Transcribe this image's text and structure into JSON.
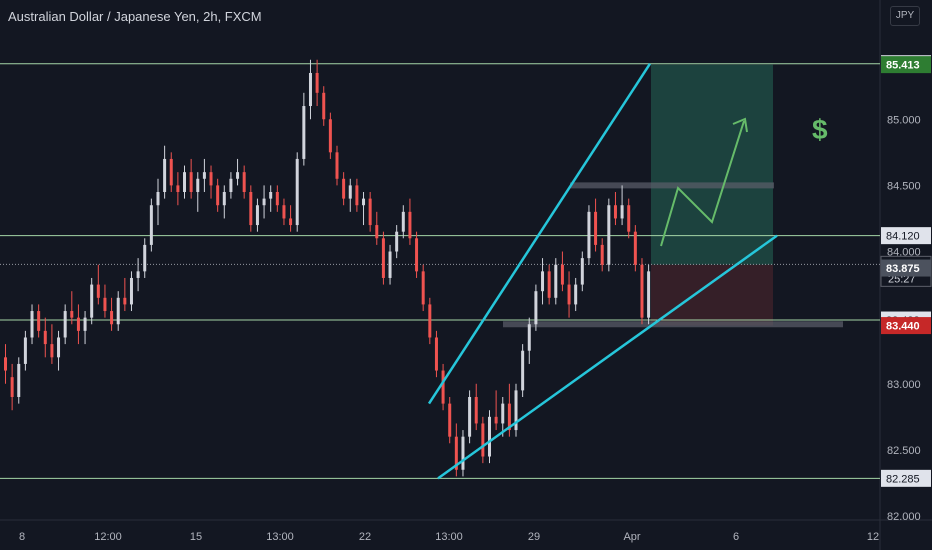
{
  "header": {
    "title": "Australian Dollar / Japanese Yen, 2h, FXCM",
    "currency_label": "JPY"
  },
  "countdown": "25:27",
  "colors": {
    "background": "#131722",
    "up_candle": "#d1d4dc",
    "down_candle": "#ef5350",
    "trendline": "#26c6da",
    "hline": "#a5d6a7",
    "target_zone": "#1f4a43",
    "stop_zone": "#3c2129",
    "arrow": "#66bb6a",
    "badge": "#e0e3eb",
    "current": "#4c525e"
  },
  "chart_data": {
    "type": "candlestick",
    "title": "Australian Dollar / Japanese Yen, 2h, FXCM",
    "ylim": [
      81.97,
      85.69
    ],
    "y_ticks": [
      "85.000",
      "84.500",
      "84.000",
      "83.000",
      "82.500",
      "82.000"
    ],
    "x_ticks": [
      "8",
      "12:00",
      "15",
      "13:00",
      "22",
      "13:00",
      "29",
      "Apr",
      "6",
      "12"
    ],
    "price_levels": [
      {
        "label": "85.420",
        "price": 85.42,
        "style": "line"
      },
      {
        "label": "85.413",
        "price": 85.413,
        "style": "target"
      },
      {
        "label": "84.120",
        "price": 84.12,
        "style": "line"
      },
      {
        "label": "83.903",
        "price": 83.903,
        "style": "current",
        "countdown": "25:27"
      },
      {
        "label": "83.875",
        "price": 83.875,
        "style": "grey"
      },
      {
        "label": "83.482",
        "price": 83.482,
        "style": "line"
      },
      {
        "label": "83.440",
        "price": 83.44,
        "style": "stop"
      },
      {
        "label": "82.285",
        "price": 82.285,
        "style": "line"
      }
    ],
    "annotation": "$",
    "candles": [
      [
        83.2,
        83.3,
        83.0,
        83.1
      ],
      [
        83.05,
        83.15,
        82.8,
        82.9
      ],
      [
        82.9,
        83.2,
        82.85,
        83.15
      ],
      [
        83.15,
        83.4,
        83.1,
        83.35
      ],
      [
        83.35,
        83.6,
        83.3,
        83.55
      ],
      [
        83.55,
        83.6,
        83.35,
        83.4
      ],
      [
        83.4,
        83.5,
        83.2,
        83.3
      ],
      [
        83.3,
        83.45,
        83.15,
        83.2
      ],
      [
        83.2,
        83.4,
        83.1,
        83.35
      ],
      [
        83.35,
        83.6,
        83.3,
        83.55
      ],
      [
        83.55,
        83.7,
        83.45,
        83.5
      ],
      [
        83.5,
        83.6,
        83.3,
        83.4
      ],
      [
        83.4,
        83.55,
        83.3,
        83.5
      ],
      [
        83.5,
        83.8,
        83.45,
        83.75
      ],
      [
        83.75,
        83.9,
        83.6,
        83.65
      ],
      [
        83.65,
        83.75,
        83.5,
        83.55
      ],
      [
        83.55,
        83.65,
        83.4,
        83.45
      ],
      [
        83.45,
        83.7,
        83.4,
        83.65
      ],
      [
        83.65,
        83.8,
        83.55,
        83.6
      ],
      [
        83.6,
        83.85,
        83.55,
        83.8
      ],
      [
        83.8,
        83.95,
        83.7,
        83.85
      ],
      [
        83.85,
        84.1,
        83.8,
        84.05
      ],
      [
        84.05,
        84.4,
        84.0,
        84.35
      ],
      [
        84.35,
        84.55,
        84.2,
        84.45
      ],
      [
        84.45,
        84.8,
        84.4,
        84.7
      ],
      [
        84.7,
        84.75,
        84.45,
        84.5
      ],
      [
        84.5,
        84.6,
        84.35,
        84.45
      ],
      [
        84.45,
        84.65,
        84.4,
        84.6
      ],
      [
        84.6,
        84.7,
        84.4,
        84.45
      ],
      [
        84.45,
        84.6,
        84.3,
        84.55
      ],
      [
        84.55,
        84.7,
        84.45,
        84.6
      ],
      [
        84.6,
        84.65,
        84.4,
        84.5
      ],
      [
        84.5,
        84.55,
        84.3,
        84.35
      ],
      [
        84.35,
        84.5,
        84.25,
        84.45
      ],
      [
        84.45,
        84.6,
        84.4,
        84.55
      ],
      [
        84.55,
        84.7,
        84.5,
        84.6
      ],
      [
        84.6,
        84.65,
        84.4,
        84.45
      ],
      [
        84.45,
        84.5,
        84.15,
        84.2
      ],
      [
        84.2,
        84.4,
        84.15,
        84.35
      ],
      [
        84.35,
        84.5,
        84.25,
        84.4
      ],
      [
        84.4,
        84.5,
        84.3,
        84.45
      ],
      [
        84.45,
        84.5,
        84.3,
        84.35
      ],
      [
        84.35,
        84.4,
        84.2,
        84.25
      ],
      [
        84.25,
        84.35,
        84.15,
        84.2
      ],
      [
        84.2,
        84.75,
        84.15,
        84.7
      ],
      [
        84.7,
        85.2,
        84.65,
        85.1
      ],
      [
        85.1,
        85.45,
        85.0,
        85.35
      ],
      [
        85.35,
        85.45,
        85.1,
        85.2
      ],
      [
        85.2,
        85.25,
        84.95,
        85.0
      ],
      [
        85.0,
        85.05,
        84.7,
        84.75
      ],
      [
        84.75,
        84.8,
        84.5,
        84.55
      ],
      [
        84.55,
        84.6,
        84.35,
        84.4
      ],
      [
        84.4,
        84.55,
        84.3,
        84.5
      ],
      [
        84.5,
        84.55,
        84.3,
        84.35
      ],
      [
        84.35,
        84.45,
        84.2,
        84.4
      ],
      [
        84.4,
        84.45,
        84.15,
        84.2
      ],
      [
        84.2,
        84.3,
        84.05,
        84.1
      ],
      [
        84.1,
        84.15,
        83.75,
        83.8
      ],
      [
        83.8,
        84.05,
        83.75,
        84.0
      ],
      [
        84.0,
        84.2,
        83.95,
        84.15
      ],
      [
        84.15,
        84.35,
        84.1,
        84.3
      ],
      [
        84.3,
        84.4,
        84.05,
        84.1
      ],
      [
        84.1,
        84.15,
        83.8,
        83.85
      ],
      [
        83.85,
        83.9,
        83.55,
        83.6
      ],
      [
        83.6,
        83.65,
        83.3,
        83.35
      ],
      [
        83.35,
        83.4,
        83.05,
        83.1
      ],
      [
        83.1,
        83.15,
        82.8,
        82.85
      ],
      [
        82.85,
        82.9,
        82.55,
        82.6
      ],
      [
        82.6,
        82.7,
        82.3,
        82.35
      ],
      [
        82.35,
        82.65,
        82.3,
        82.6
      ],
      [
        82.6,
        82.95,
        82.55,
        82.9
      ],
      [
        82.9,
        83.0,
        82.65,
        82.7
      ],
      [
        82.7,
        82.75,
        82.4,
        82.45
      ],
      [
        82.45,
        82.8,
        82.4,
        82.75
      ],
      [
        82.75,
        82.95,
        82.65,
        82.7
      ],
      [
        82.7,
        82.9,
        82.6,
        82.85
      ],
      [
        82.85,
        83.0,
        82.6,
        82.65
      ],
      [
        82.65,
        83.0,
        82.6,
        82.95
      ],
      [
        82.95,
        83.3,
        82.9,
        83.25
      ],
      [
        83.25,
        83.5,
        83.15,
        83.45
      ],
      [
        83.45,
        83.75,
        83.4,
        83.7
      ],
      [
        83.7,
        83.95,
        83.6,
        83.85
      ],
      [
        83.85,
        83.9,
        83.6,
        83.65
      ],
      [
        83.65,
        83.95,
        83.6,
        83.9
      ],
      [
        83.9,
        84.0,
        83.7,
        83.75
      ],
      [
        83.75,
        83.85,
        83.5,
        83.6
      ],
      [
        83.6,
        83.8,
        83.55,
        83.75
      ],
      [
        83.75,
        84.0,
        83.7,
        83.95
      ],
      [
        83.95,
        84.35,
        83.9,
        84.3
      ],
      [
        84.3,
        84.4,
        84.0,
        84.05
      ],
      [
        84.05,
        84.1,
        83.85,
        83.9
      ],
      [
        83.9,
        84.4,
        83.85,
        84.35
      ],
      [
        84.35,
        84.45,
        84.2,
        84.25
      ],
      [
        84.25,
        84.5,
        84.2,
        84.35
      ],
      [
        84.35,
        84.4,
        84.1,
        84.15
      ],
      [
        84.15,
        84.2,
        83.85,
        83.9
      ],
      [
        83.9,
        83.95,
        83.45,
        83.5
      ],
      [
        83.5,
        83.9,
        83.45,
        83.85
      ]
    ]
  }
}
